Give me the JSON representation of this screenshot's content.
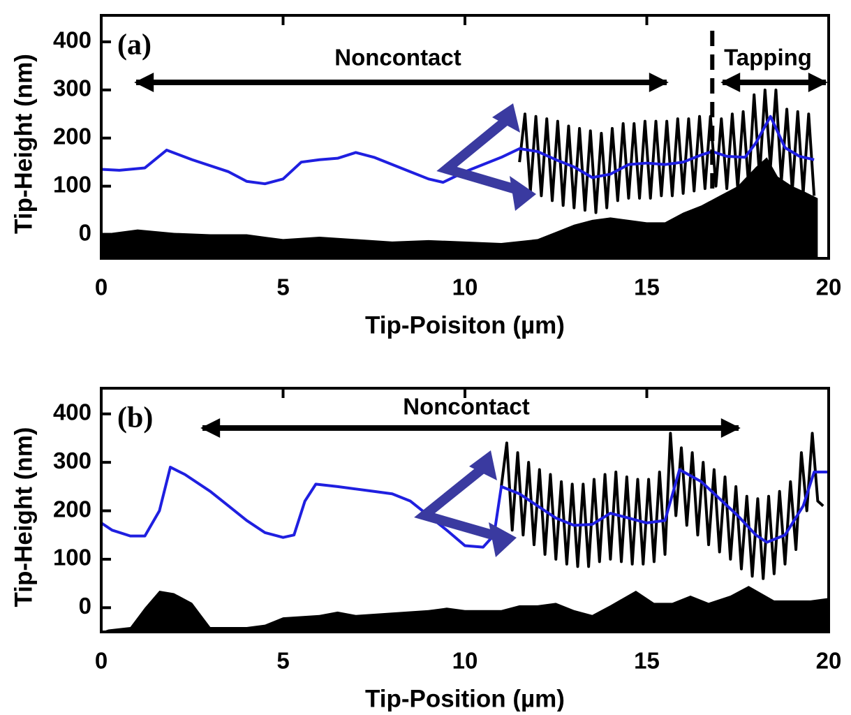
{
  "chart_data": [
    {
      "type": "line",
      "panel_label": "(a)",
      "xlabel": "Tip-Poisiton (µm)",
      "ylabel": "Tip-Height (nm)",
      "annotations": [
        "Noncontact",
        "Tapping"
      ],
      "boundary": 16.8,
      "xlim": [
        0,
        20
      ],
      "ylim": [
        -50,
        455
      ],
      "xticks": [
        0,
        5,
        10,
        15,
        20
      ],
      "yticks": [
        0,
        100,
        200,
        300,
        400
      ],
      "series": [
        {
          "type": "area",
          "color": "#000000",
          "x": [
            0,
            1,
            2,
            3,
            4,
            5,
            6,
            7,
            8,
            9,
            10,
            11,
            12,
            12.5,
            13,
            13.5,
            14,
            14.5,
            15,
            15.5,
            16,
            16.5,
            17,
            17.5,
            18,
            18.3,
            18.6,
            19,
            19.3,
            19.7
          ],
          "values": [
            0,
            10,
            3,
            0,
            0,
            -10,
            -5,
            -10,
            -15,
            -12,
            -15,
            -18,
            -10,
            5,
            20,
            30,
            35,
            30,
            25,
            25,
            45,
            60,
            80,
            100,
            140,
            160,
            120,
            100,
            90,
            75
          ]
        },
        {
          "type": "line",
          "color": "#000000",
          "x": [
            11.5,
            11.65,
            11.8,
            11.95,
            12.1,
            12.25,
            12.4,
            12.55,
            12.7,
            12.85,
            13,
            13.15,
            13.3,
            13.45,
            13.6,
            13.75,
            13.9,
            14.05,
            14.2,
            14.35,
            14.5,
            14.65,
            14.8,
            14.95,
            15.1,
            15.25,
            15.4,
            15.55,
            15.7,
            15.85,
            16,
            16.15,
            16.3,
            16.45,
            16.6,
            16.75,
            16.9,
            17.05,
            17.2,
            17.35,
            17.5,
            17.65,
            17.8,
            17.95,
            18.1,
            18.25,
            18.4,
            18.55,
            18.7,
            18.85,
            19,
            19.15,
            19.3,
            19.45,
            19.6
          ],
          "values": [
            150,
            250,
            90,
            245,
            80,
            240,
            70,
            235,
            60,
            225,
            55,
            220,
            50,
            215,
            45,
            210,
            55,
            220,
            70,
            230,
            75,
            230,
            75,
            235,
            75,
            235,
            80,
            235,
            80,
            240,
            85,
            240,
            90,
            245,
            95,
            245,
            100,
            240,
            95,
            250,
            95,
            255,
            100,
            290,
            120,
            300,
            140,
            300,
            110,
            260,
            90,
            255,
            85,
            250,
            80
          ]
        },
        {
          "type": "line",
          "color": "#1f1fe0",
          "x": [
            0,
            0.5,
            1.2,
            1.8,
            2.5,
            3.5,
            4,
            4.5,
            5,
            5.5,
            6,
            6.5,
            7,
            7.5,
            8,
            8.5,
            9,
            9.4,
            10,
            10.5,
            11,
            11.5,
            12,
            12.5,
            13,
            13.5,
            14,
            14.5,
            15,
            15.5,
            16,
            16.5,
            16.8,
            17.2,
            17.7,
            18,
            18.4,
            18.8,
            19.2,
            19.6
          ],
          "values": [
            135,
            133,
            138,
            175,
            155,
            130,
            110,
            105,
            115,
            150,
            155,
            158,
            170,
            160,
            145,
            130,
            115,
            108,
            130,
            145,
            160,
            178,
            172,
            155,
            140,
            118,
            125,
            145,
            148,
            145,
            150,
            165,
            172,
            162,
            160,
            190,
            245,
            180,
            162,
            155
          ]
        }
      ]
    },
    {
      "type": "line",
      "panel_label": "(b)",
      "xlabel": "Tip-Position (µm)",
      "ylabel": "Tip-Height (nm)",
      "annotations": [
        "Noncontact"
      ],
      "xlim": [
        0,
        20
      ],
      "ylim": [
        -50,
        453
      ],
      "xticks": [
        0,
        5,
        10,
        15,
        20
      ],
      "yticks": [
        0,
        100,
        200,
        300,
        400
      ],
      "series": [
        {
          "type": "area",
          "color": "#000000",
          "x": [
            0,
            0.2,
            0.8,
            1.2,
            1.6,
            2,
            2.5,
            3,
            4,
            4.5,
            5,
            6,
            6.5,
            7,
            8,
            9,
            9.5,
            10,
            11,
            11.5,
            12,
            12.5,
            13,
            13.5,
            14,
            14.7,
            15.2,
            15.7,
            16.2,
            16.7,
            17.3,
            17.8,
            18.5,
            19.5,
            20
          ],
          "values": [
            -50,
            -45,
            -40,
            0,
            35,
            30,
            10,
            -40,
            -40,
            -35,
            -20,
            -15,
            -8,
            -15,
            -10,
            -5,
            0,
            -5,
            -5,
            5,
            5,
            10,
            -5,
            -15,
            5,
            35,
            10,
            10,
            25,
            10,
            25,
            45,
            15,
            15,
            20
          ]
        },
        {
          "type": "line",
          "color": "#000000",
          "x": [
            11,
            11.15,
            11.3,
            11.45,
            11.6,
            11.75,
            11.9,
            12.05,
            12.2,
            12.35,
            12.5,
            12.65,
            12.8,
            12.95,
            13.1,
            13.25,
            13.4,
            13.55,
            13.7,
            13.85,
            14,
            14.15,
            14.3,
            14.45,
            14.6,
            14.75,
            14.9,
            15.05,
            15.2,
            15.35,
            15.5,
            15.65,
            15.8,
            15.95,
            16.1,
            16.25,
            16.4,
            16.55,
            16.7,
            16.85,
            17,
            17.15,
            17.3,
            17.45,
            17.6,
            17.75,
            17.9,
            18.05,
            18.2,
            18.35,
            18.5,
            18.65,
            18.8,
            18.95,
            19.1,
            19.25,
            19.4,
            19.55,
            19.7,
            19.85
          ],
          "values": [
            250,
            340,
            160,
            320,
            150,
            300,
            130,
            285,
            110,
            275,
            100,
            260,
            90,
            255,
            85,
            255,
            85,
            265,
            95,
            275,
            100,
            280,
            95,
            270,
            90,
            265,
            90,
            265,
            95,
            280,
            110,
            360,
            190,
            330,
            170,
            320,
            150,
            300,
            130,
            285,
            115,
            270,
            100,
            250,
            80,
            230,
            65,
            225,
            60,
            230,
            70,
            240,
            90,
            260,
            120,
            320,
            200,
            360,
            220,
            210
          ]
        },
        {
          "type": "line",
          "color": "#1f1fe0",
          "x": [
            0,
            0.3,
            0.8,
            1.2,
            1.6,
            1.9,
            2.3,
            3,
            3.5,
            4,
            4.5,
            5,
            5.3,
            5.6,
            5.9,
            6.5,
            7,
            7.5,
            8,
            8.5,
            9,
            9.5,
            10,
            10.5,
            10.8,
            11,
            11.5,
            12,
            12.5,
            13,
            13.5,
            14,
            14.5,
            15,
            15.5,
            15.9,
            16.5,
            17,
            17.5,
            18,
            18.3,
            18.8,
            19.3,
            19.6,
            20
          ],
          "values": [
            175,
            160,
            148,
            148,
            200,
            290,
            275,
            240,
            210,
            180,
            155,
            145,
            150,
            220,
            255,
            250,
            245,
            240,
            235,
            220,
            190,
            160,
            128,
            125,
            150,
            250,
            235,
            210,
            185,
            170,
            172,
            195,
            185,
            175,
            180,
            285,
            260,
            225,
            190,
            150,
            135,
            150,
            210,
            280,
            280
          ]
        }
      ]
    }
  ]
}
